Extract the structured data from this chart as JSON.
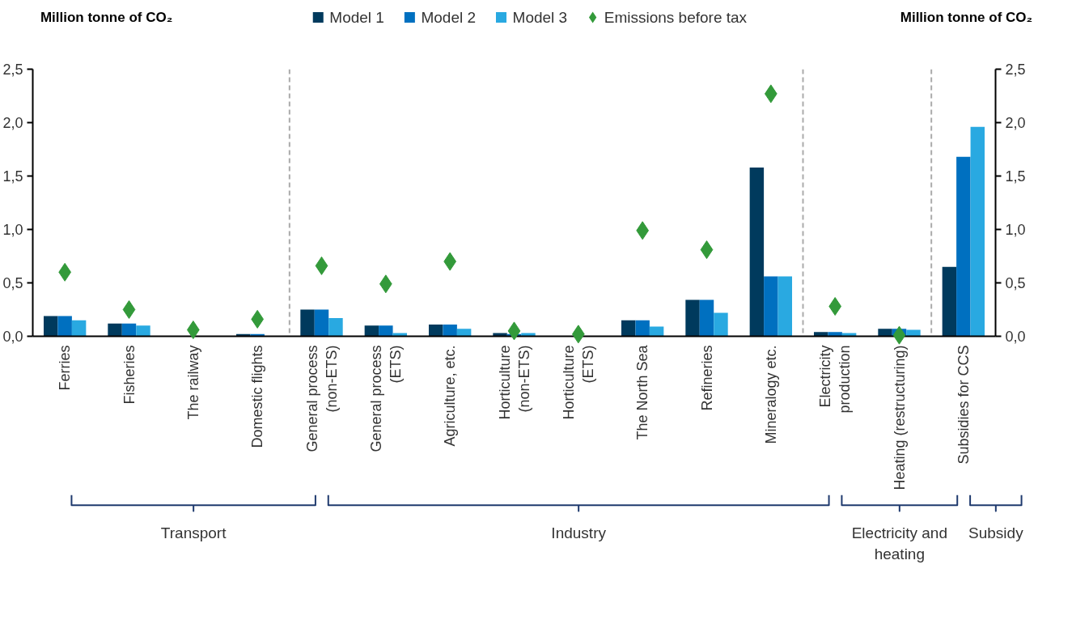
{
  "chart_data": {
    "type": "bar",
    "categories": [
      "Ferries",
      "Fisheries",
      "The railway",
      "Domestic flights",
      "General process\n(non-ETS)",
      "General process\n(ETS)",
      "Agriculture, etc.",
      "Horticulture\n(non-ETS)",
      "Horticulture\n(ETS)",
      "The North Sea",
      "Refineries",
      "Mineralogy etc.",
      "Electricity\nproduction",
      "Heating (restructuring)",
      "Subsidies for CCS"
    ],
    "series": [
      {
        "name": "Model 1",
        "color": "#003a5d",
        "values": [
          0.19,
          0.12,
          0,
          0.02,
          0.25,
          0.1,
          0.11,
          0.03,
          0,
          0.15,
          0.34,
          1.58,
          0.04,
          0.07,
          0.65
        ]
      },
      {
        "name": "Model 2",
        "color": "#0070c0",
        "values": [
          0.19,
          0.12,
          0,
          0.02,
          0.25,
          0.1,
          0.11,
          0.02,
          0,
          0.15,
          0.34,
          0.56,
          0.04,
          0.07,
          1.68
        ]
      },
      {
        "name": "Model 3",
        "color": "#29a9e1",
        "values": [
          0.15,
          0.1,
          0,
          0,
          0.17,
          0.03,
          0.07,
          0.03,
          0,
          0.09,
          0.22,
          0.56,
          0.03,
          0.06,
          1.96
        ]
      },
      {
        "name": "Emissions before tax",
        "type": "scatter",
        "marker": "diamond",
        "color": "#339a3a",
        "values": [
          0.6,
          0.25,
          0.06,
          0.16,
          0.66,
          0.49,
          0.7,
          0.05,
          0.02,
          0.99,
          0.81,
          2.27,
          0.28,
          0.01,
          null
        ]
      }
    ],
    "ylim": [
      0,
      2.5
    ],
    "yticks": [
      {
        "value": 0,
        "label": "0,0"
      },
      {
        "value": 0.5,
        "label": "0,5"
      },
      {
        "value": 1,
        "label": "1,0"
      },
      {
        "value": 1.5,
        "label": "1,5"
      },
      {
        "value": 2,
        "label": "2,0"
      },
      {
        "value": 2.5,
        "label": "2,5"
      }
    ],
    "y2lim": [
      0,
      2.5
    ],
    "y2ticks": [
      {
        "value": 0,
        "label": "0,0"
      },
      {
        "value": 0.5,
        "label": "0,5"
      },
      {
        "value": 1,
        "label": "1,0"
      },
      {
        "value": 1.5,
        "label": "1,5"
      },
      {
        "value": 2,
        "label": "2,0"
      },
      {
        "value": 2.5,
        "label": "2,5"
      }
    ],
    "annotations": [
      "Million tonne of CO₂",
      "Million tonne of CO₂",
      "Transport",
      "Industry",
      "Electricity and\nheating",
      "Subsidy"
    ],
    "grid": false,
    "legend": "top"
  }
}
